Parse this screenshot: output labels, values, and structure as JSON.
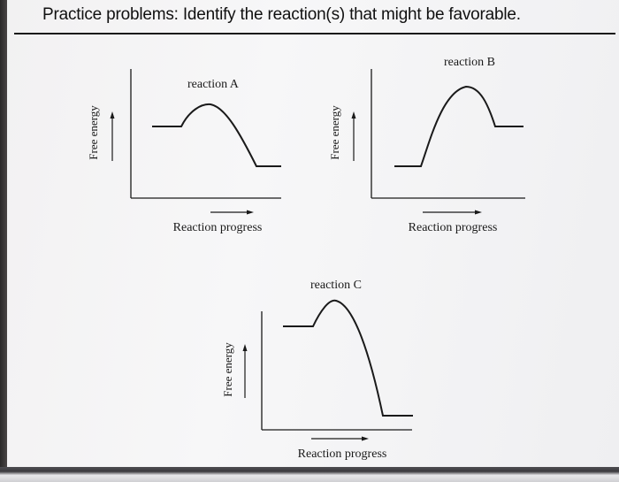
{
  "title": "Practice problems: Identify the reaction(s) that might be favorable.",
  "plots": [
    {
      "id": "a",
      "label": "reaction A",
      "y_axis_label": "Free energy",
      "x_axis_label": "Reaction progress"
    },
    {
      "id": "b",
      "label": "reaction B",
      "y_axis_label": "Free energy",
      "x_axis_label": "Reaction progress"
    },
    {
      "id": "c",
      "label": "reaction C",
      "y_axis_label": "Free energy",
      "x_axis_label": "Reaction progress"
    }
  ],
  "colors": {
    "ink": "#1a1a1a",
    "background": "#f4f4f5"
  }
}
